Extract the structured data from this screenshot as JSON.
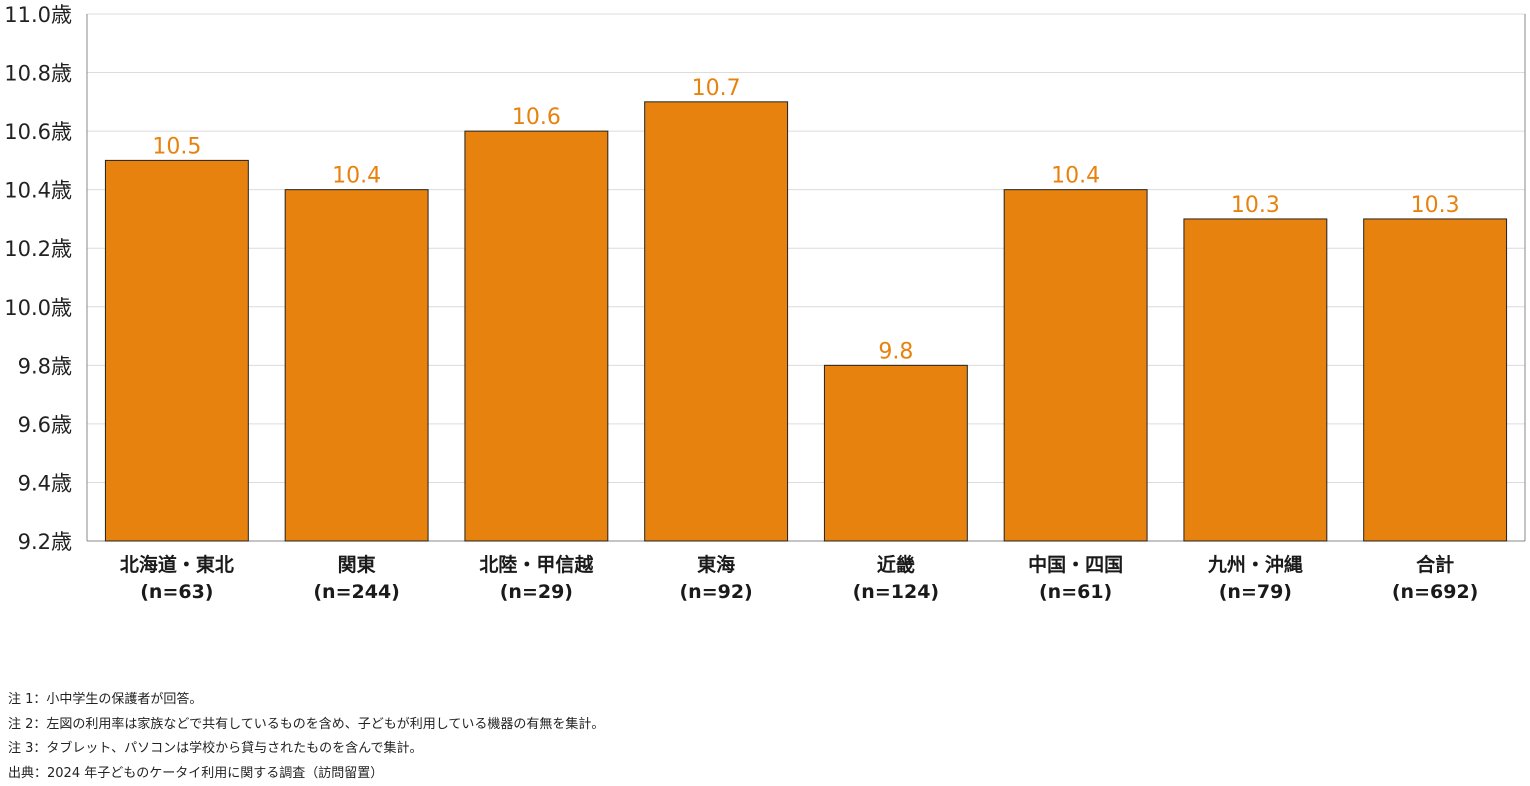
{
  "chart_data": {
    "type": "bar",
    "categories": [
      {
        "line1": "北海道・東北",
        "line2": "(n=63)"
      },
      {
        "line1": "関東",
        "line2": "(n=244)"
      },
      {
        "line1": "北陸・甲信越",
        "line2": "(n=29)"
      },
      {
        "line1": "東海",
        "line2": "(n=92)"
      },
      {
        "line1": "近畿",
        "line2": "(n=124)"
      },
      {
        "line1": "中国・四国",
        "line2": "(n=61)"
      },
      {
        "line1": "九州・沖縄",
        "line2": "(n=79)"
      },
      {
        "line1": "合計",
        "line2": "(n=692)"
      }
    ],
    "values": [
      10.5,
      10.4,
      10.6,
      10.7,
      9.8,
      10.4,
      10.3,
      10.3
    ],
    "value_labels": [
      "10.5",
      "10.4",
      "10.6",
      "10.7",
      "9.8",
      "10.4",
      "10.3",
      "10.3"
    ],
    "ylim": [
      9.2,
      11.0
    ],
    "yticks": [
      "9.2歳",
      "9.4歳",
      "9.6歳",
      "9.8歳",
      "10.0歳",
      "10.2歳",
      "10.4歳",
      "10.6歳",
      "10.8歳",
      "11.0歳"
    ],
    "ytick_values": [
      9.2,
      9.4,
      9.6,
      9.8,
      10.0,
      10.2,
      10.4,
      10.6,
      10.8,
      11.0
    ],
    "grid": true,
    "bar_color": "#e8820f",
    "label_color": "#e8820f"
  },
  "notes": [
    "注 1：小中学生の保護者が回答。",
    "注 2：左図の利用率は家族などで共有しているものを含め、子どもが利用している機器の有無を集計。",
    "注 3：タブレット、パソコンは学校から貸与されたものを含んで集計。",
    "出典：2024 年子どものケータイ利用に関する調査（訪問留置）"
  ]
}
